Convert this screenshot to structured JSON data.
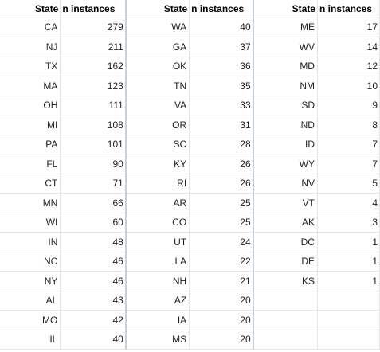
{
  "headers": {
    "state": "State",
    "count": "n instances"
  },
  "blocks": [
    {
      "rows": [
        {
          "state": "CA",
          "count": "279"
        },
        {
          "state": "NJ",
          "count": "211"
        },
        {
          "state": "TX",
          "count": "162"
        },
        {
          "state": "MA",
          "count": "123"
        },
        {
          "state": "OH",
          "count": "111"
        },
        {
          "state": "MI",
          "count": "108"
        },
        {
          "state": "PA",
          "count": "101"
        },
        {
          "state": "FL",
          "count": "90"
        },
        {
          "state": "CT",
          "count": "71"
        },
        {
          "state": "MN",
          "count": "66"
        },
        {
          "state": "WI",
          "count": "60"
        },
        {
          "state": "IN",
          "count": "48"
        },
        {
          "state": "NC",
          "count": "46"
        },
        {
          "state": "NY",
          "count": "46"
        },
        {
          "state": "AL",
          "count": "43"
        },
        {
          "state": "MO",
          "count": "42"
        },
        {
          "state": "IL",
          "count": "40"
        }
      ]
    },
    {
      "rows": [
        {
          "state": "WA",
          "count": "40"
        },
        {
          "state": "GA",
          "count": "37"
        },
        {
          "state": "OK",
          "count": "36"
        },
        {
          "state": "TN",
          "count": "35"
        },
        {
          "state": "VA",
          "count": "33"
        },
        {
          "state": "OR",
          "count": "31"
        },
        {
          "state": "SC",
          "count": "28"
        },
        {
          "state": "KY",
          "count": "26"
        },
        {
          "state": "RI",
          "count": "26"
        },
        {
          "state": "AR",
          "count": "25"
        },
        {
          "state": "CO",
          "count": "25"
        },
        {
          "state": "UT",
          "count": "24"
        },
        {
          "state": "LA",
          "count": "22"
        },
        {
          "state": "NH",
          "count": "21"
        },
        {
          "state": "AZ",
          "count": "20"
        },
        {
          "state": "IA",
          "count": "20"
        },
        {
          "state": "MS",
          "count": "20"
        }
      ]
    },
    {
      "rows": [
        {
          "state": "ME",
          "count": "17"
        },
        {
          "state": "WV",
          "count": "14"
        },
        {
          "state": "MD",
          "count": "12"
        },
        {
          "state": "NM",
          "count": "10"
        },
        {
          "state": "SD",
          "count": "9"
        },
        {
          "state": "ND",
          "count": "8"
        },
        {
          "state": "ID",
          "count": "7"
        },
        {
          "state": "WY",
          "count": "7"
        },
        {
          "state": "NV",
          "count": "5"
        },
        {
          "state": "VT",
          "count": "4"
        },
        {
          "state": "AK",
          "count": "3"
        },
        {
          "state": "DC",
          "count": "1"
        },
        {
          "state": "DE",
          "count": "1"
        },
        {
          "state": "KS",
          "count": "1"
        },
        {
          "state": "",
          "count": ""
        },
        {
          "state": "",
          "count": ""
        },
        {
          "state": "",
          "count": ""
        }
      ]
    }
  ]
}
